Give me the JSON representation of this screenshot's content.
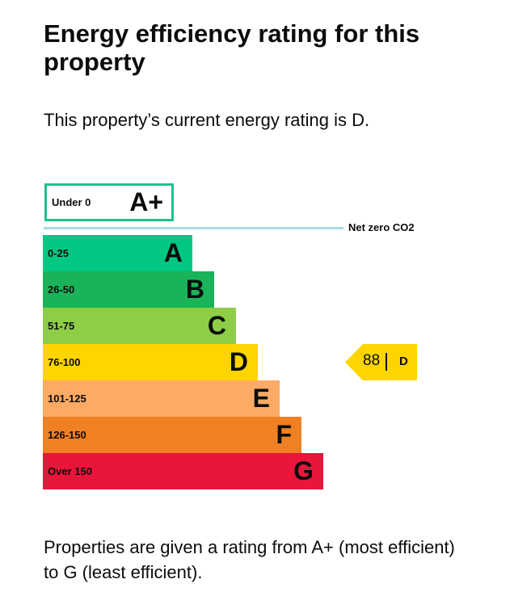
{
  "title": "Energy efficiency rating for this property",
  "intro": "This property’s current energy rating is D.",
  "top_band": {
    "range": "Under 0",
    "letter": "A+"
  },
  "net_zero_label": "Net zero CO2",
  "bands": [
    {
      "range": "0-25",
      "letter": "A"
    },
    {
      "range": "26-50",
      "letter": "B"
    },
    {
      "range": "51-75",
      "letter": "C"
    },
    {
      "range": "76-100",
      "letter": "D"
    },
    {
      "range": "101-125",
      "letter": "E"
    },
    {
      "range": "126-150",
      "letter": "F"
    },
    {
      "range": "Over 150",
      "letter": "G"
    }
  ],
  "current_rating": {
    "score": 88,
    "letter": "D"
  },
  "footer": "Properties are given a rating from A+ (most efficient) to G (least efficient)."
}
